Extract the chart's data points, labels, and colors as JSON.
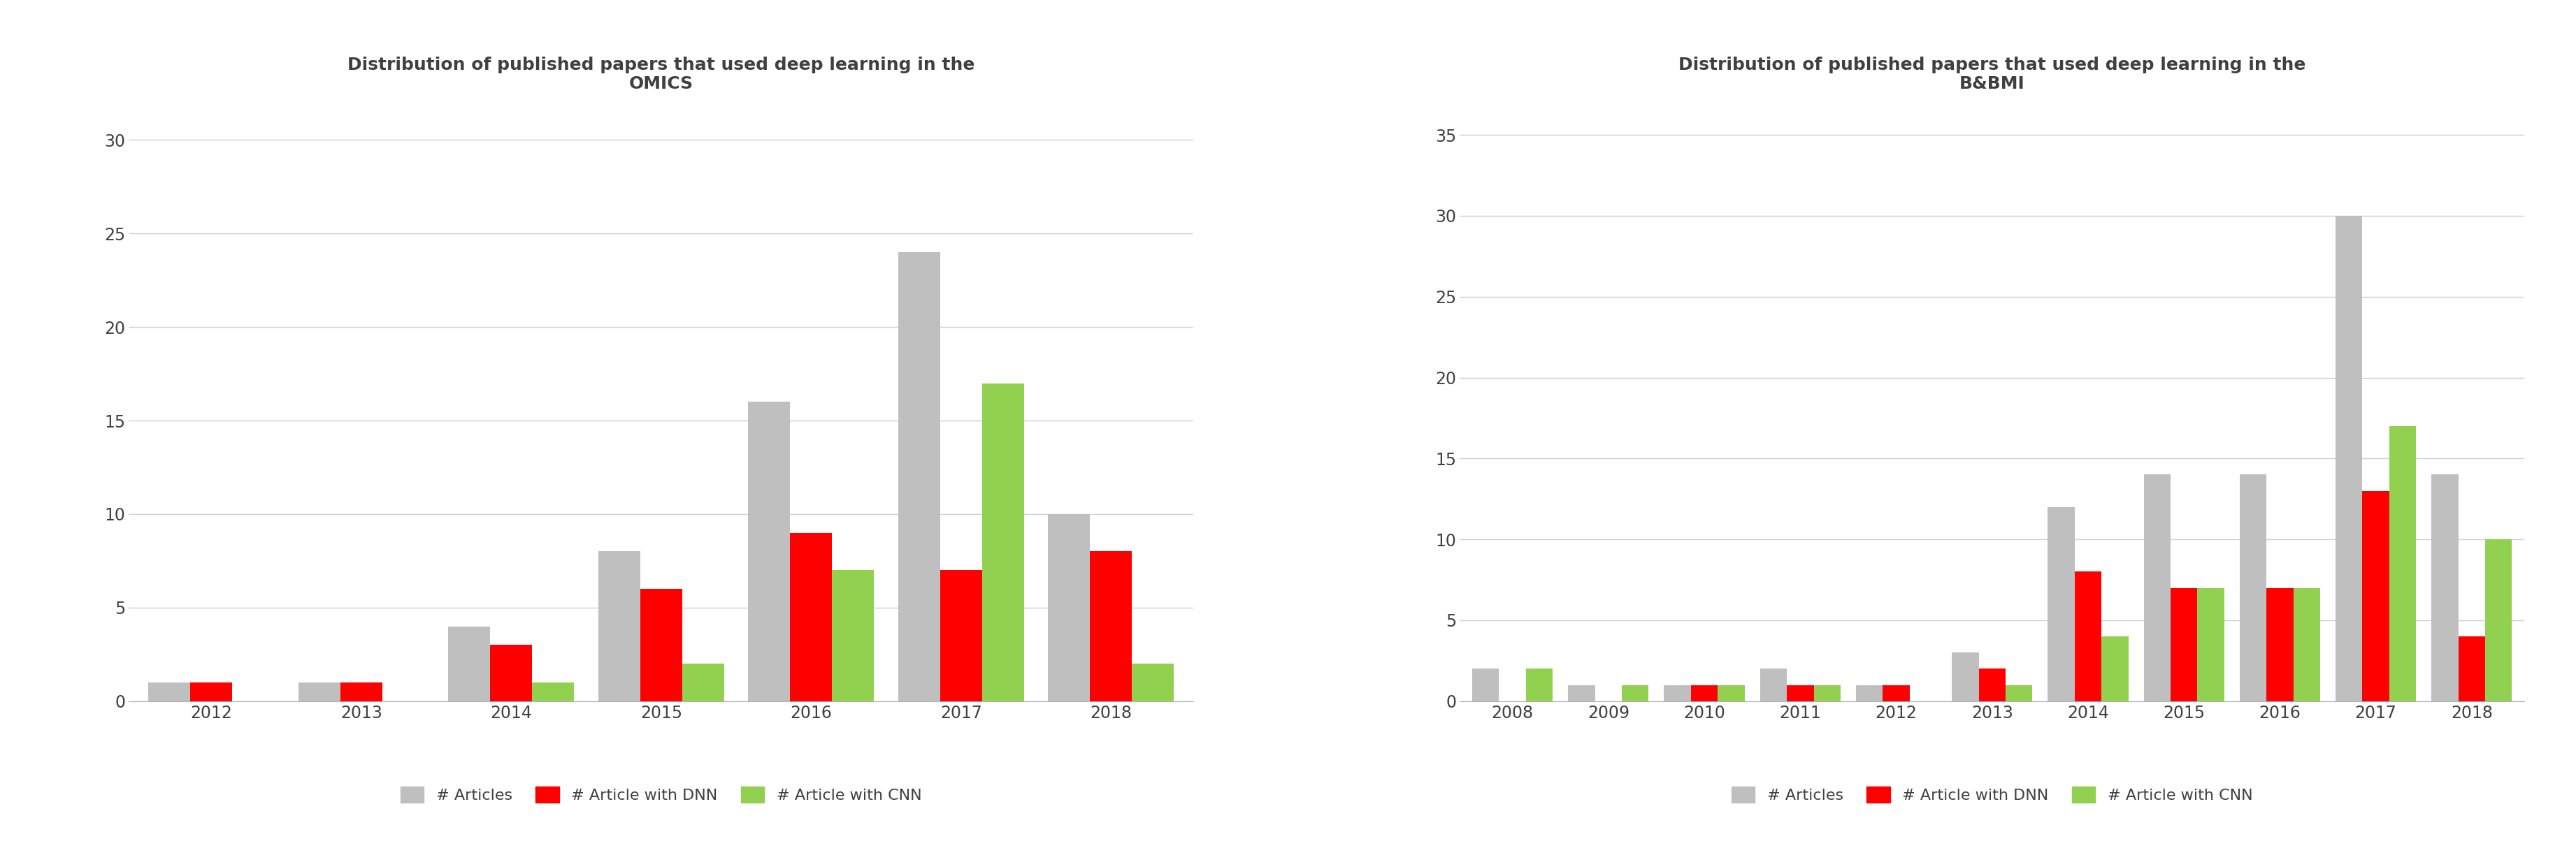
{
  "chart1": {
    "title": "Distribution of published papers that used deep learning in the\nOMICS",
    "years": [
      "2012",
      "2013",
      "2014",
      "2015",
      "2016",
      "2017",
      "2018"
    ],
    "articles": [
      1,
      1,
      4,
      8,
      16,
      24,
      10
    ],
    "dnn": [
      1,
      1,
      3,
      6,
      9,
      7,
      8
    ],
    "cnn": [
      0,
      0,
      1,
      2,
      7,
      17,
      2
    ],
    "ylim": [
      0,
      32
    ],
    "yticks": [
      0,
      5,
      10,
      15,
      20,
      25,
      30
    ]
  },
  "chart2": {
    "title": "Distribution of published papers that used deep learning in the\nB&BMI",
    "years": [
      "2008",
      "2009",
      "2010",
      "2011",
      "2012",
      "2013",
      "2014",
      "2015",
      "2016",
      "2017",
      "2018"
    ],
    "articles": [
      2,
      1,
      1,
      2,
      1,
      3,
      12,
      14,
      14,
      30,
      14
    ],
    "dnn": [
      0,
      0,
      1,
      1,
      1,
      2,
      8,
      7,
      7,
      13,
      4
    ],
    "cnn": [
      2,
      1,
      1,
      1,
      0,
      1,
      4,
      7,
      7,
      17,
      10
    ],
    "ylim": [
      0,
      37
    ],
    "yticks": [
      0,
      5,
      10,
      15,
      20,
      25,
      30,
      35
    ]
  },
  "colors": {
    "articles": "#c0bfbf",
    "dnn": "#ff0000",
    "cnn": "#92d050"
  },
  "legend_labels": [
    "# Articles",
    "# Article with DNN",
    "# Article with CNN"
  ],
  "bar_width": 0.28,
  "title_fontsize": 18,
  "tick_fontsize": 17,
  "legend_fontsize": 16,
  "background_color": "#ffffff",
  "grid_color": "#d0d0d0",
  "text_color": "#404040"
}
